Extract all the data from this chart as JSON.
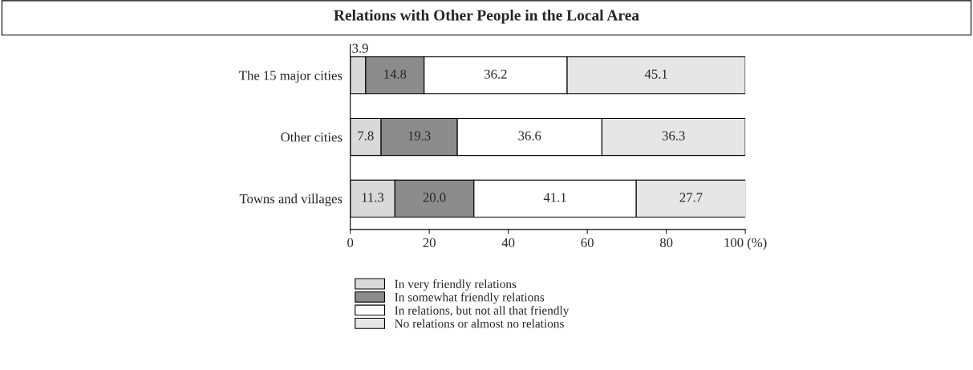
{
  "chart_data": {
    "type": "bar",
    "title": "Relations with Other People in the Local Area",
    "orientation": "horizontal",
    "stacked": true,
    "categories": [
      "The 15 major cities",
      "Other cities",
      "Towns and villages"
    ],
    "series": [
      {
        "name": "In very friendly relations",
        "color": "#d9d9d9",
        "values": [
          3.9,
          7.8,
          11.3
        ],
        "value_labels": [
          "3.9",
          "7.8",
          "11.3"
        ]
      },
      {
        "name": "In somewhat friendly relations",
        "color": "#8c8c8c",
        "values": [
          14.8,
          19.3,
          20.0
        ],
        "value_labels": [
          "14.8",
          "19.3",
          "20.0"
        ]
      },
      {
        "name": "In relations, but not all that friendly",
        "color": "#ffffff",
        "values": [
          36.2,
          36.6,
          41.1
        ],
        "value_labels": [
          "36.2",
          "36.6",
          "41.1"
        ]
      },
      {
        "name": "No relations or almost no relations",
        "color": "#e6e6e6",
        "values": [
          45.1,
          36.3,
          27.7
        ],
        "value_labels": [
          "45.1",
          "36.3",
          "27.7"
        ]
      }
    ],
    "xlim": [
      0,
      100
    ],
    "xticks": [
      0,
      20,
      40,
      60,
      80,
      {
        "value": 100,
        "label": "100 (%)"
      }
    ],
    "grid": false,
    "legend": "bottom"
  }
}
